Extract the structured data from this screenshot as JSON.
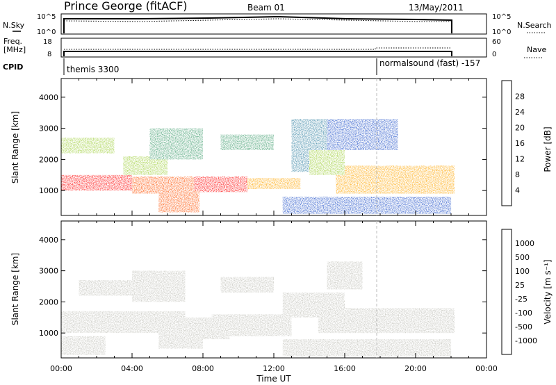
{
  "header": {
    "station": "Prince George (fitACF)",
    "beam": "Beam 01",
    "date": "13/May/2011"
  },
  "small_panels": {
    "nsky_label": "N.Sky",
    "nsearch_label": "N.Search",
    "freq_label_1": "Freq.",
    "freq_label_2": "[MHz]",
    "nave_label": "Nave",
    "cpid_label": "CPID",
    "log_ticks": [
      "10^5",
      "10^0"
    ],
    "freq_ticks": [
      "18",
      "8"
    ],
    "nave_ticks": [
      "60",
      "0"
    ],
    "cpid_segments": [
      {
        "label": "themis 3300",
        "start_hour": 0
      },
      {
        "label": "normalsound (fast) -157",
        "start_hour": 18
      }
    ]
  },
  "axes": {
    "x_ticks": [
      "00:00",
      "04:00",
      "08:00",
      "12:00",
      "16:00",
      "20:00",
      "00:00"
    ],
    "x_label": "Time UT",
    "y_ticks": [
      "1000",
      "2000",
      "3000",
      "4000"
    ],
    "y_label": "Slant Range [km]"
  },
  "colorbars": {
    "power": {
      "label": "Power [dB]",
      "ticks": [
        "4",
        "8",
        "12",
        "16",
        "20",
        "24",
        "28"
      ],
      "colors": [
        "#1a1aff",
        "#2050c8",
        "#2f7fa0",
        "#3a9a6a",
        "#9acd32",
        "#f2d600",
        "#ffa500",
        "#ff5000",
        "#ff0000"
      ]
    },
    "velocity": {
      "label": "Velocity [m s⁻¹]",
      "ticks": [
        "1000",
        "500",
        "100",
        "25",
        "-25",
        "-100",
        "-500",
        "-1000"
      ],
      "colors": [
        "#2020c0",
        "#2f6fa0",
        "#3c9a50",
        "#55c02a",
        "#c0c0b8",
        "#c0c0b8",
        "#f0b000",
        "#ff8000",
        "#ff4000",
        "#ff0000"
      ]
    }
  },
  "chart_data": [
    {
      "type": "heatmap",
      "title": "Power",
      "xlabel": "Time UT",
      "ylabel": "Slant Range [km]",
      "xlim": [
        0,
        24
      ],
      "ylim": [
        200,
        4600
      ],
      "data_hours": [
        0,
        22.2
      ],
      "colorbar_range": [
        0,
        30
      ],
      "bands": [
        {
          "t": [
            0.0,
            4.0
          ],
          "r": [
            1000,
            1500
          ],
          "value": 28
        },
        {
          "t": [
            4.0,
            7.5
          ],
          "r": [
            900,
            1450
          ],
          "value": 24
        },
        {
          "t": [
            7.5,
            10.5
          ],
          "r": [
            950,
            1450
          ],
          "value": 28
        },
        {
          "t": [
            10.5,
            13.5
          ],
          "r": [
            1050,
            1400
          ],
          "value": 20
        },
        {
          "t": [
            5.5,
            7.8
          ],
          "r": [
            300,
            1000
          ],
          "value": 26
        },
        {
          "t": [
            3.5,
            6.0
          ],
          "r": [
            1500,
            2100
          ],
          "value": 16
        },
        {
          "t": [
            5.0,
            8.0
          ],
          "r": [
            2000,
            3000
          ],
          "value": 12
        },
        {
          "t": [
            0.0,
            3.0
          ],
          "r": [
            2200,
            2700
          ],
          "value": 14
        },
        {
          "t": [
            9.0,
            12.0
          ],
          "r": [
            2300,
            2800
          ],
          "value": 12
        },
        {
          "t": [
            13.0,
            15.5
          ],
          "r": [
            1600,
            3300
          ],
          "value": 8
        },
        {
          "t": [
            15.5,
            22.2
          ],
          "r": [
            900,
            1800
          ],
          "value": 22
        },
        {
          "t": [
            14.0,
            16.0
          ],
          "r": [
            1500,
            2300
          ],
          "value": 14
        },
        {
          "t": [
            15.0,
            19.0
          ],
          "r": [
            2300,
            3300
          ],
          "value": 6
        },
        {
          "t": [
            12.5,
            22.0
          ],
          "r": [
            250,
            800
          ],
          "value": 6
        }
      ]
    },
    {
      "type": "heatmap",
      "title": "Velocity",
      "xlabel": "Time UT",
      "ylabel": "Slant Range [km]",
      "xlim": [
        0,
        24
      ],
      "ylim": [
        200,
        4600
      ],
      "data_hours": [
        0,
        22.2
      ],
      "colorbar_range": [
        -1000,
        1000
      ],
      "bands": [
        {
          "t": [
            0.0,
            7.0
          ],
          "r": [
            1000,
            1700
          ],
          "value": 0
        },
        {
          "t": [
            0.0,
            2.5
          ],
          "r": [
            300,
            900
          ],
          "value": 0
        },
        {
          "t": [
            1.0,
            4.0
          ],
          "r": [
            2200,
            2700
          ],
          "value": 0
        },
        {
          "t": [
            4.0,
            7.0
          ],
          "r": [
            2000,
            3000
          ],
          "value": -40
        },
        {
          "t": [
            7.0,
            9.5
          ],
          "r": [
            800,
            1500
          ],
          "value": -150
        },
        {
          "t": [
            5.5,
            8.0
          ],
          "r": [
            500,
            1000
          ],
          "value": 100
        },
        {
          "t": [
            8.5,
            13.0
          ],
          "r": [
            900,
            1600
          ],
          "value": 80
        },
        {
          "t": [
            9.0,
            12.0
          ],
          "r": [
            2300,
            2800
          ],
          "value": 0
        },
        {
          "t": [
            12.5,
            16.0
          ],
          "r": [
            1500,
            2300
          ],
          "value": 0
        },
        {
          "t": [
            14.5,
            22.2
          ],
          "r": [
            1000,
            1800
          ],
          "value": 0
        },
        {
          "t": [
            12.5,
            22.0
          ],
          "r": [
            250,
            800
          ],
          "value": 0
        },
        {
          "t": [
            15.0,
            17.0
          ],
          "r": [
            2400,
            3300
          ],
          "value": 120
        }
      ]
    }
  ]
}
